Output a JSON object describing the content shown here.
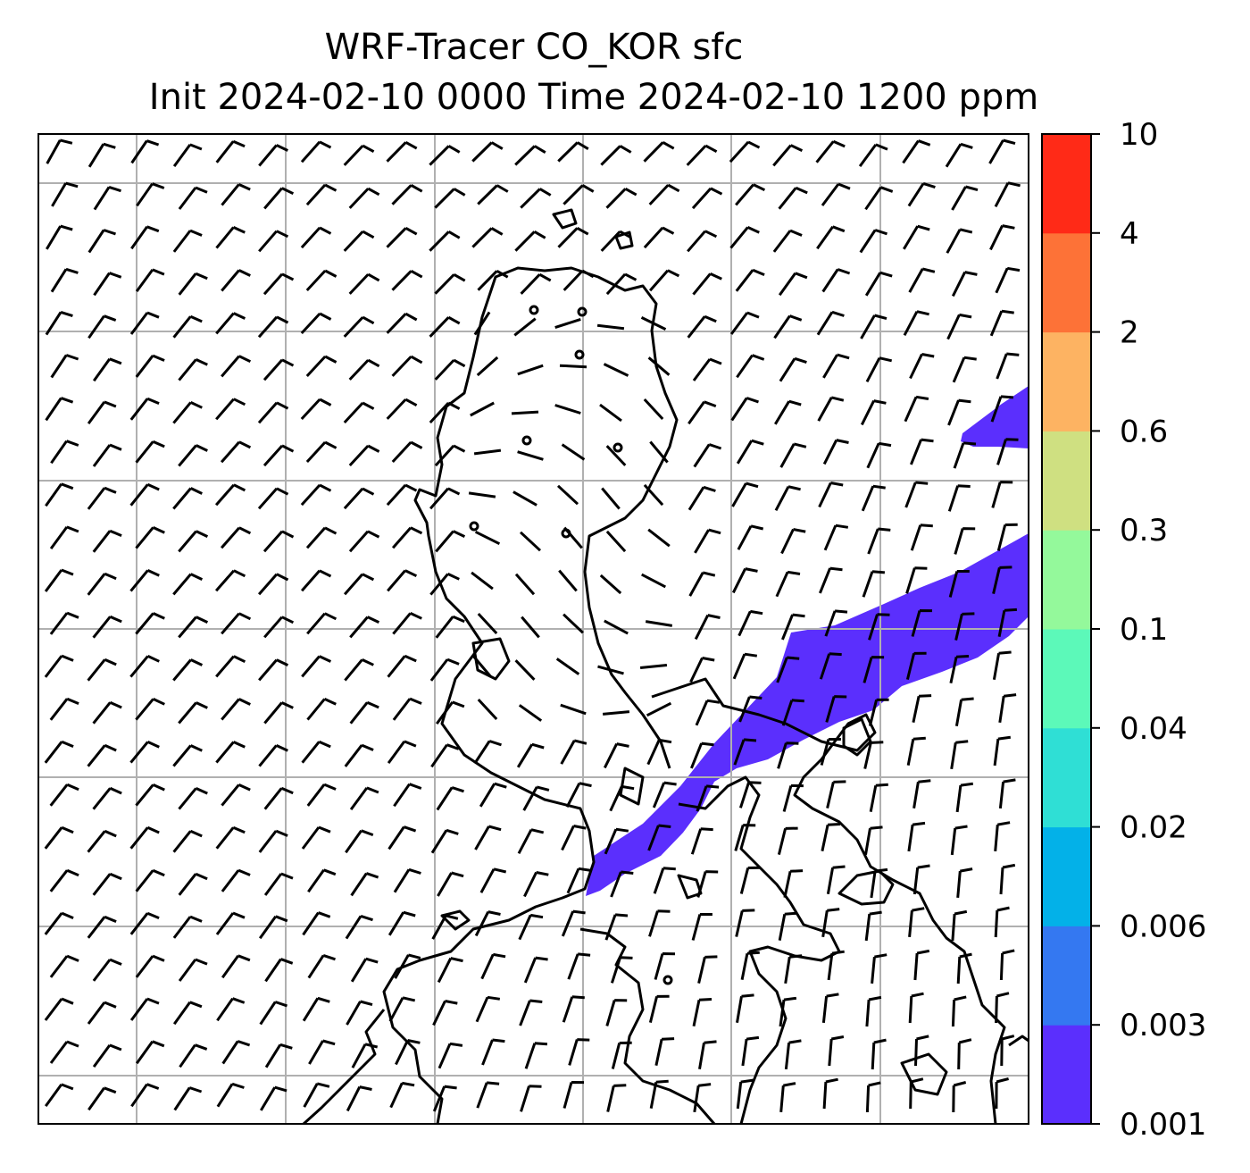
{
  "title": {
    "line1": "WRF-Tracer CO_KOR sfc",
    "line2": "Init 2024-02-10 0000 Time 2024-02-10 1200 ppm"
  },
  "map": {
    "gridlines": true,
    "coastlines": true,
    "field": "CO_KOR tracer concentration (surface)",
    "overlay": "wind barbs",
    "plume_level_color": "#5b2ffd"
  },
  "colorbar": {
    "orientation": "vertical",
    "ticks": [
      "0.001",
      "0.003",
      "0.006",
      "0.02",
      "0.04",
      "0.1",
      "0.3",
      "0.6",
      "2",
      "4",
      "10"
    ],
    "colors": [
      "#5b2ffd",
      "#3478f1",
      "#03b1e8",
      "#2fdfd5",
      "#5cf9b9",
      "#94f99b",
      "#cfe081",
      "#fdb362",
      "#fd7237",
      "#ff2a17"
    ]
  }
}
